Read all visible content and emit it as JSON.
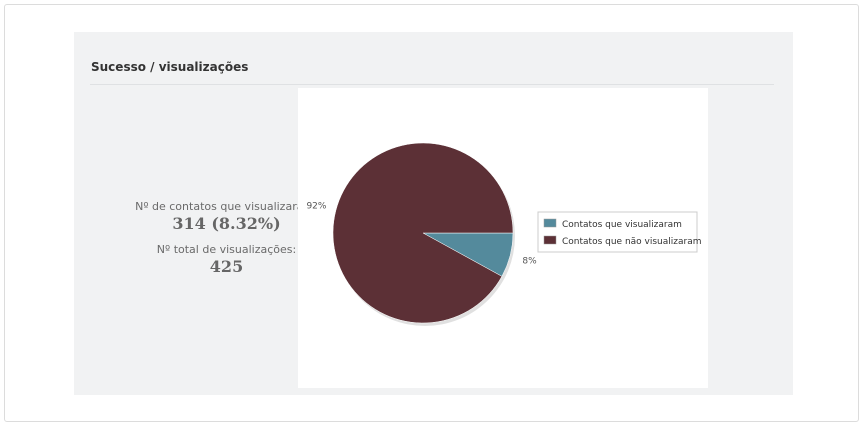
{
  "panel": {
    "title": "Sucesso / visualizações"
  },
  "stats": {
    "contacts_label": "Nº de contatos que visualizaram:",
    "contacts_value": "314 (8.32%)",
    "total_label": "Nº total de visualizações:",
    "total_value": "425"
  },
  "chart_data": {
    "type": "pie",
    "title": "",
    "legend_position": "right",
    "slices": [
      {
        "label": "Contatos que visualizaram",
        "value": 8,
        "value_label": "8%",
        "color": "#548a9c"
      },
      {
        "label": "Contatos que não visualizaram",
        "value": 92,
        "value_label": "92%",
        "color": "#5c3036"
      }
    ]
  }
}
